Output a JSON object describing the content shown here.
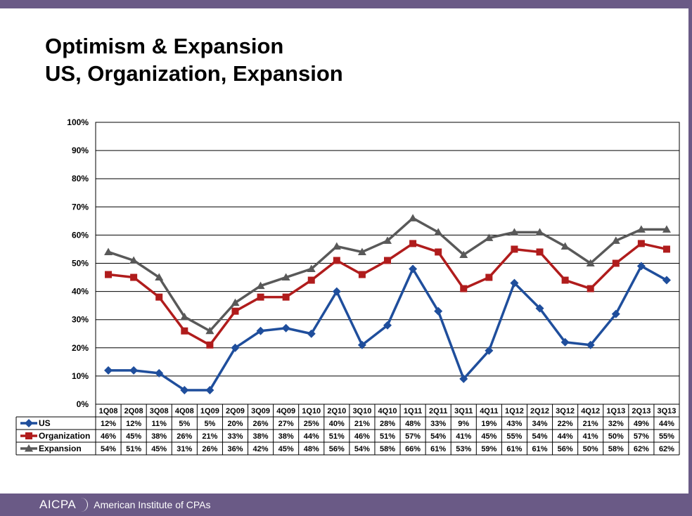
{
  "slide": {
    "title_line1": "Optimism & Expansion",
    "title_line2": "US, Organization, Expansion",
    "footer_logo": "AICPA",
    "footer_text": "American Institute of CPAs",
    "colors": {
      "bar": "#6a5a86"
    }
  },
  "chart_data": {
    "type": "line",
    "title": "",
    "xlabel": "",
    "ylabel": "",
    "ylim": [
      0,
      100
    ],
    "yticks": [
      "0%",
      "10%",
      "20%",
      "30%",
      "40%",
      "50%",
      "60%",
      "70%",
      "80%",
      "90%",
      "100%"
    ],
    "grid": true,
    "legend": "data-table",
    "categories": [
      "1Q08",
      "2Q08",
      "3Q08",
      "4Q08",
      "1Q09",
      "2Q09",
      "3Q09",
      "4Q09",
      "1Q10",
      "2Q10",
      "3Q10",
      "4Q10",
      "1Q11",
      "2Q11",
      "3Q11",
      "4Q11",
      "1Q12",
      "2Q12",
      "3Q12",
      "4Q12",
      "1Q13",
      "2Q13",
      "3Q13"
    ],
    "series": [
      {
        "name": "US",
        "color": "#1f4e9c",
        "marker": "diamond",
        "values": [
          12,
          12,
          11,
          5,
          5,
          20,
          26,
          27,
          25,
          40,
          21,
          28,
          48,
          33,
          9,
          19,
          43,
          34,
          22,
          21,
          32,
          49,
          44
        ],
        "labels": [
          "12%",
          "12%",
          "11%",
          "5%",
          "5%",
          "20%",
          "26%",
          "27%",
          "25%",
          "40%",
          "21%",
          "28%",
          "48%",
          "33%",
          "9%",
          "19%",
          "43%",
          "34%",
          "22%",
          "21%",
          "32%",
          "49%",
          "44%"
        ]
      },
      {
        "name": "Organization",
        "color": "#b01c1c",
        "marker": "square",
        "values": [
          46,
          45,
          38,
          26,
          21,
          33,
          38,
          38,
          44,
          51,
          46,
          51,
          57,
          54,
          41,
          45,
          55,
          54,
          44,
          41,
          50,
          57,
          55
        ],
        "labels": [
          "46%",
          "45%",
          "38%",
          "26%",
          "21%",
          "33%",
          "38%",
          "38%",
          "44%",
          "51%",
          "46%",
          "51%",
          "57%",
          "54%",
          "41%",
          "45%",
          "55%",
          "54%",
          "44%",
          "41%",
          "50%",
          "57%",
          "55%"
        ]
      },
      {
        "name": "Expansion",
        "color": "#595959",
        "marker": "triangle",
        "values": [
          54,
          51,
          45,
          31,
          26,
          36,
          42,
          45,
          48,
          56,
          54,
          58,
          66,
          61,
          53,
          59,
          61,
          61,
          56,
          50,
          58,
          62,
          62
        ],
        "labels": [
          "54%",
          "51%",
          "45%",
          "31%",
          "26%",
          "36%",
          "42%",
          "45%",
          "48%",
          "56%",
          "54%",
          "58%",
          "66%",
          "61%",
          "53%",
          "59%",
          "61%",
          "61%",
          "56%",
          "50%",
          "58%",
          "62%",
          "62%"
        ]
      }
    ]
  }
}
